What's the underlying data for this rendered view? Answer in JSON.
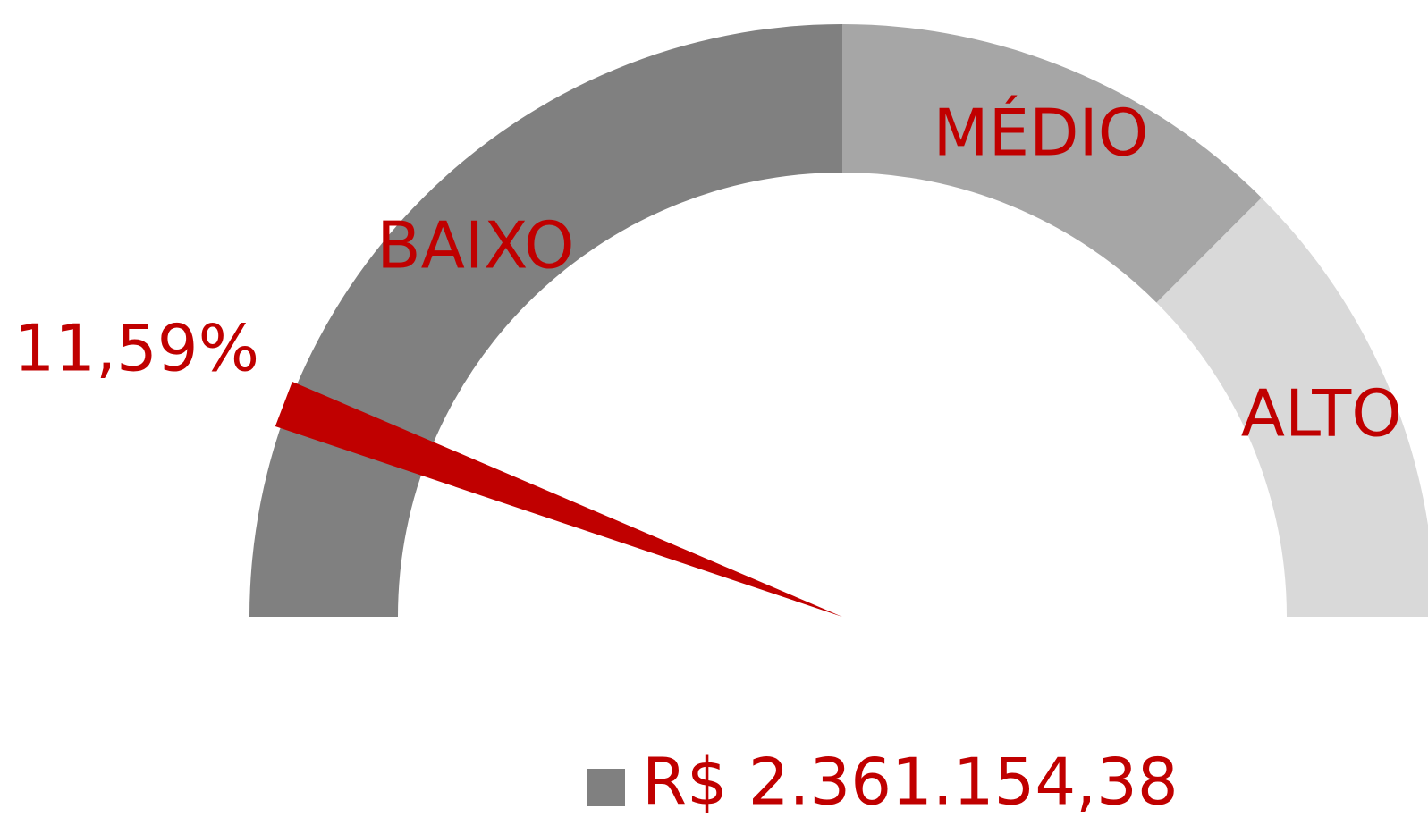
{
  "chart_data": {
    "type": "gauge",
    "categories": [
      "BAIXO",
      "MÉDIO",
      "ALTO"
    ],
    "values": [
      50,
      25,
      25
    ],
    "colors": [
      "#808080",
      "#a6a6a6",
      "#d9d9d9"
    ],
    "ylim": [
      0,
      100
    ],
    "value": 11.59,
    "value_label": "11,59%",
    "needle_color": "#c00000",
    "legend": {
      "label": "R$ 2.361.154,38",
      "color": "#808080"
    }
  }
}
